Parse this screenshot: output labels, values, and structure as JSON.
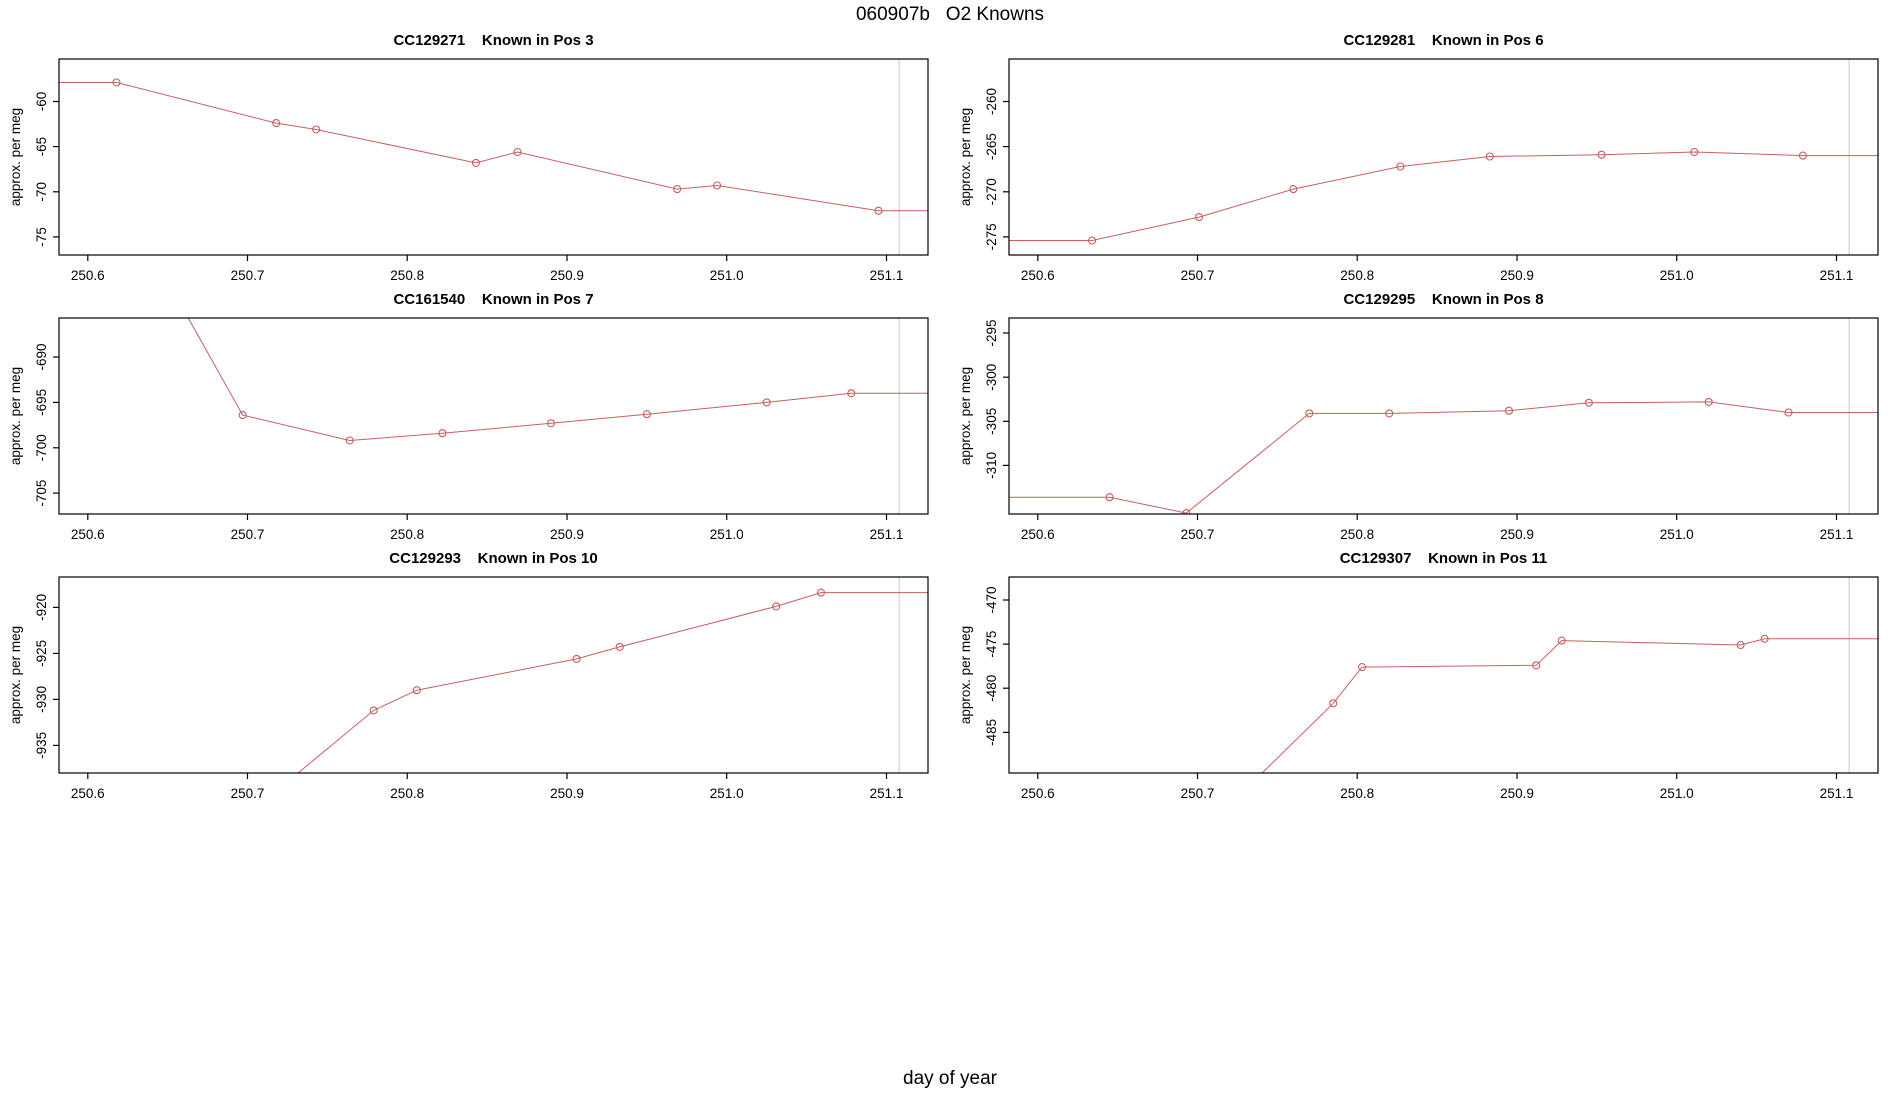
{
  "page": {
    "main_title": "060907b   O2 Knowns",
    "outer_xlabel": "day of year"
  },
  "style": {
    "line_color": "#c65f5f",
    "vline_color": "#dadada",
    "axis_color": "#000000",
    "background": "#ffffff"
  },
  "chart_data": [
    {
      "type": "line",
      "title": "CC129271    Known in Pos 3",
      "sample_id": "CC129271",
      "position_label": "Known in Pos 3",
      "ylabel": "approx. per meg",
      "x": [
        250.618,
        250.718,
        250.743,
        250.843,
        250.869,
        250.969,
        250.994,
        251.095
      ],
      "y": [
        -57.9,
        -62.4,
        -63.1,
        -66.8,
        -65.6,
        -69.7,
        -69.3,
        -72.1
      ],
      "lead_point": null,
      "extend_left": true,
      "extend_right": true,
      "xlim": [
        250.582,
        251.126
      ],
      "ylim": [
        -77.0,
        -55.3
      ],
      "xtick_values": [
        250.6,
        250.7,
        250.8,
        250.9,
        251.0,
        251.1
      ],
      "xtick_labels": [
        "250.6",
        "250.7",
        "250.8",
        "250.9",
        "251.0",
        "251.1"
      ],
      "ytick_values": [
        -60,
        -65,
        -70,
        -75
      ],
      "ytick_labels": [
        "-60",
        "-65",
        "-70",
        "-75"
      ],
      "vline_x": 251.108,
      "grid": false,
      "legend": null
    },
    {
      "type": "line",
      "title": "CC129281    Known in Pos 6",
      "sample_id": "CC129281",
      "position_label": "Known in Pos 6",
      "ylabel": "approx. per meg",
      "x": [
        250.634,
        250.701,
        250.76,
        250.827,
        250.883,
        250.953,
        251.011,
        251.079
      ],
      "y": [
        -275.4,
        -272.8,
        -269.7,
        -267.2,
        -266.1,
        -265.9,
        -265.6,
        -266.0
      ],
      "lead_point": null,
      "extend_left": true,
      "extend_right": true,
      "xlim": [
        250.582,
        251.126
      ],
      "ylim": [
        -277.0,
        -255.3
      ],
      "xtick_values": [
        250.6,
        250.7,
        250.8,
        250.9,
        251.0,
        251.1
      ],
      "xtick_labels": [
        "250.6",
        "250.7",
        "250.8",
        "250.9",
        "251.0",
        "251.1"
      ],
      "ytick_values": [
        -260,
        -265,
        -270,
        -275
      ],
      "ytick_labels": [
        "-260",
        "-265",
        "-270",
        "-275"
      ],
      "vline_x": 251.108,
      "grid": false,
      "legend": null
    },
    {
      "type": "line",
      "title": "CC161540    Known in Pos 7",
      "sample_id": "CC161540",
      "position_label": "Known in Pos 7",
      "ylabel": "approx. per meg",
      "x": [
        250.697,
        250.764,
        250.822,
        250.89,
        250.95,
        251.025,
        251.078
      ],
      "y": [
        -696.4,
        -699.2,
        -698.4,
        -697.3,
        -696.3,
        -695.0,
        -694.0
      ],
      "lead_point": [
        250.648,
        -681.0
      ],
      "extend_left": false,
      "extend_right": true,
      "xlim": [
        250.582,
        251.126
      ],
      "ylim": [
        -707.3,
        -685.7
      ],
      "xtick_values": [
        250.6,
        250.7,
        250.8,
        250.9,
        251.0,
        251.1
      ],
      "xtick_labels": [
        "250.6",
        "250.7",
        "250.8",
        "250.9",
        "251.0",
        "251.1"
      ],
      "ytick_values": [
        -690,
        -695,
        -700,
        -705
      ],
      "ytick_labels": [
        "-690",
        "-695",
        "-700",
        "-705"
      ],
      "vline_x": 251.108,
      "grid": false,
      "legend": null
    },
    {
      "type": "line",
      "title": "CC129295    Known in Pos 8",
      "sample_id": "CC129295",
      "position_label": "Known in Pos 8",
      "ylabel": "approx. per meg",
      "x": [
        250.645,
        250.693,
        250.77,
        250.82,
        250.895,
        250.945,
        251.02,
        251.07
      ],
      "y": [
        -313.6,
        -315.4,
        -304.1,
        -304.1,
        -303.8,
        -302.9,
        -302.8,
        -304.0
      ],
      "lead_point": null,
      "extend_left": true,
      "extend_right": true,
      "xlim": [
        250.582,
        251.126
      ],
      "ylim": [
        -315.5,
        -293.3
      ],
      "xtick_values": [
        250.6,
        250.7,
        250.8,
        250.9,
        251.0,
        251.1
      ],
      "xtick_labels": [
        "250.6",
        "250.7",
        "250.8",
        "250.9",
        "251.0",
        "251.1"
      ],
      "ytick_values": [
        -295,
        -300,
        -305,
        -310
      ],
      "ytick_labels": [
        "-295",
        "-300",
        "-305",
        "-310"
      ],
      "vline_x": 251.108,
      "grid": false,
      "legend": null
    },
    {
      "type": "line",
      "title": "CC129293    Known in Pos 10",
      "sample_id": "CC129293",
      "position_label": "Known in Pos 10",
      "ylabel": "approx. per meg",
      "x": [
        250.779,
        250.806,
        250.906,
        250.933,
        251.031,
        251.059
      ],
      "y": [
        -931.2,
        -929.0,
        -925.6,
        -924.3,
        -919.9,
        -918.4
      ],
      "lead_point": [
        250.69,
        -944.0
      ],
      "extend_left": false,
      "extend_right": true,
      "xlim": [
        250.582,
        251.126
      ],
      "ylim": [
        -938.0,
        -916.7
      ],
      "xtick_values": [
        250.6,
        250.7,
        250.8,
        250.9,
        251.0,
        251.1
      ],
      "xtick_labels": [
        "250.6",
        "250.7",
        "250.8",
        "250.9",
        "251.0",
        "251.1"
      ],
      "ytick_values": [
        -920,
        -925,
        -930,
        -935
      ],
      "ytick_labels": [
        "-920",
        "-925",
        "-930",
        "-935"
      ],
      "vline_x": 251.108,
      "grid": false,
      "legend": null
    },
    {
      "type": "line",
      "title": "CC129307    Known in Pos 11",
      "sample_id": "CC129307",
      "position_label": "Known in Pos 11",
      "ylabel": "approx. per meg",
      "x": [
        250.785,
        250.803,
        250.912,
        250.928,
        251.04,
        251.055
      ],
      "y": [
        -481.7,
        -477.6,
        -477.4,
        -474.6,
        -475.1,
        -474.4
      ],
      "lead_point": [
        250.71,
        -495.0
      ],
      "extend_left": false,
      "extend_right": true,
      "xlim": [
        250.582,
        251.126
      ],
      "ylim": [
        -489.6,
        -467.4
      ],
      "xtick_values": [
        250.6,
        250.7,
        250.8,
        250.9,
        251.0,
        251.1
      ],
      "xtick_labels": [
        "250.6",
        "250.7",
        "250.8",
        "250.9",
        "251.0",
        "251.1"
      ],
      "ytick_values": [
        -470,
        -475,
        -480,
        -485
      ],
      "ytick_labels": [
        "-470",
        "-475",
        "-480",
        "-485"
      ],
      "vline_x": 251.108,
      "grid": false,
      "legend": null
    }
  ]
}
